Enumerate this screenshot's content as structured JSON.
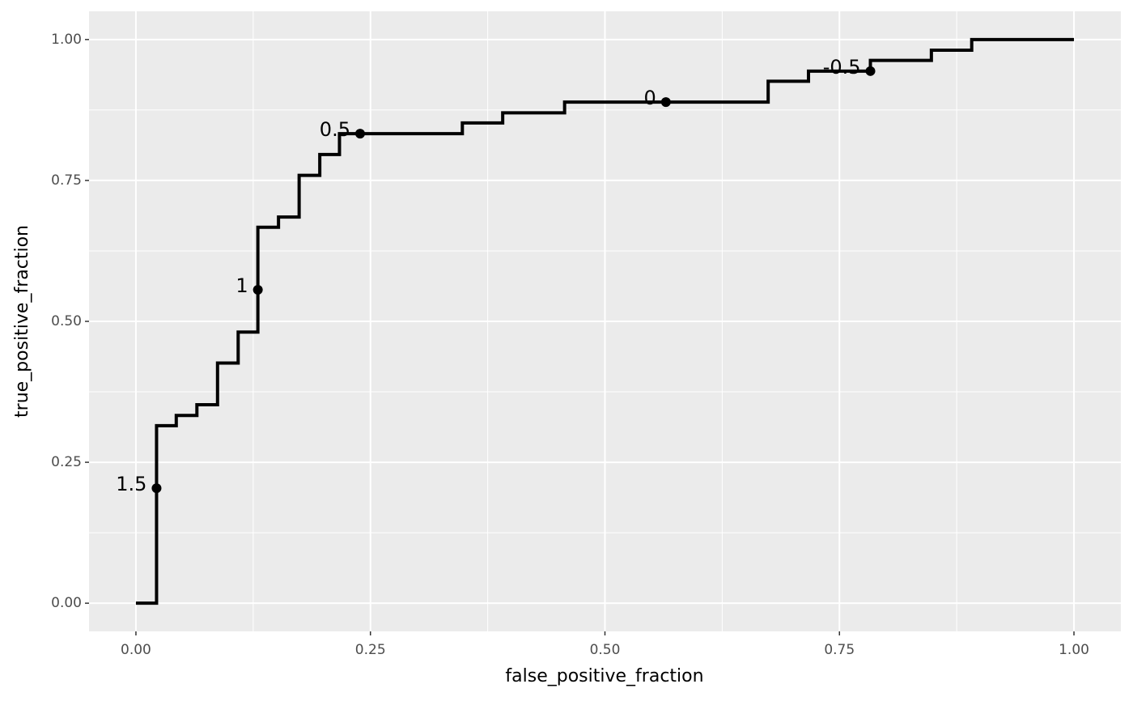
{
  "chart_data": {
    "type": "step",
    "x_label": "false_positive_fraction",
    "y_label": "true_positive_fraction",
    "line": {
      "x": [
        0,
        0.022,
        0.043,
        0.065,
        0.087,
        0.109,
        0.13,
        0.152,
        0.174,
        0.196,
        0.217,
        0.348,
        0.391,
        0.457,
        0.674,
        0.717,
        0.783,
        0.848,
        0.891,
        1.0
      ],
      "y": [
        0,
        0.315,
        0.333,
        0.352,
        0.426,
        0.481,
        0.667,
        0.685,
        0.759,
        0.796,
        0.833,
        0.852,
        0.87,
        0.889,
        0.926,
        0.944,
        0.963,
        0.981,
        1.0,
        1.0
      ],
      "color": "#000000"
    },
    "cutoffs": {
      "x": [
        0.022,
        0.13,
        0.239,
        0.565,
        0.783
      ],
      "y": [
        0.204,
        0.556,
        0.833,
        0.889,
        0.944
      ],
      "labels": [
        "1.5",
        "1",
        "0.5",
        "0",
        "-0.5"
      ]
    },
    "xlim": [
      -0.05,
      1.05
    ],
    "ylim": [
      -0.05,
      1.05
    ],
    "xticks": [
      {
        "value": 0,
        "label": "0.00"
      },
      0.25,
      {
        "value": 0.5,
        "label": "0.50"
      },
      0.75,
      {
        "value": 1,
        "label": "1.00"
      }
    ],
    "yticks": [
      {
        "value": 0,
        "label": "0.00"
      },
      0.25,
      {
        "value": 0.5,
        "label": "0.50"
      },
      0.75,
      {
        "value": 1,
        "label": "1.00"
      }
    ],
    "grid": true,
    "minor_grid": true
  }
}
